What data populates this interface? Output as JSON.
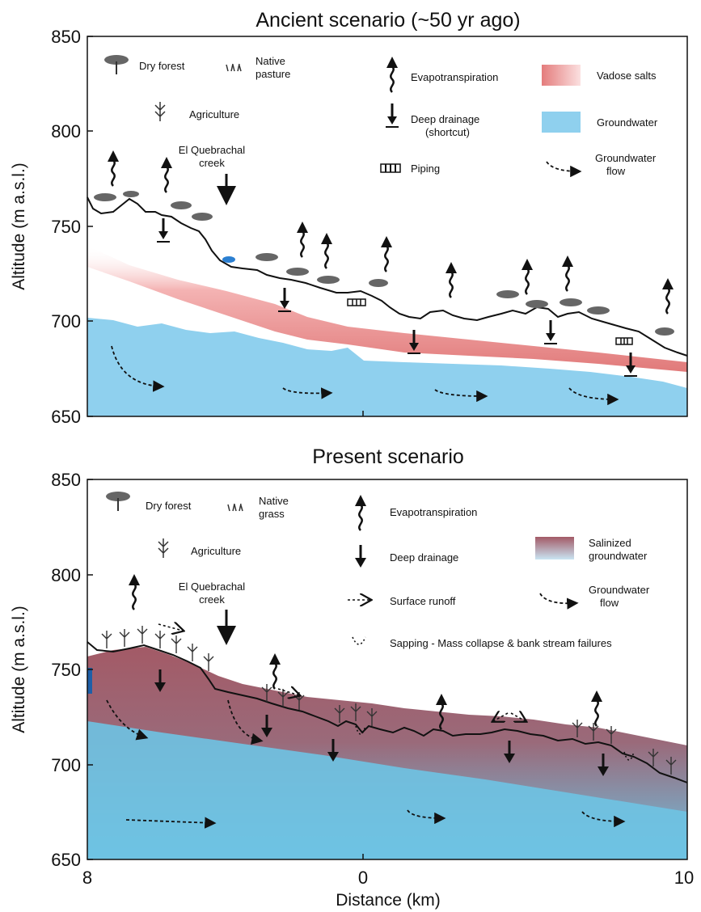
{
  "panels": [
    {
      "title": "Ancient scenario (~50 yr ago)",
      "ylabel": "Altitude (m a.s.l.)",
      "yticks": [
        "850",
        "800",
        "750",
        "700",
        "650"
      ],
      "creek_label": [
        "El Quebrachal",
        "creek"
      ],
      "legend": {
        "dry_forest": "Dry forest",
        "native": [
          "Native",
          "pasture"
        ],
        "agriculture": "Agriculture",
        "evapotranspiration": "Evapotranspiration",
        "deep_drainage": [
          "Deep drainage",
          "(shortcut)"
        ],
        "piping": "Piping",
        "salts": "Vadose salts",
        "groundwater": "Groundwater",
        "gw_flow": [
          "Groundwater",
          "flow"
        ]
      }
    },
    {
      "title": "Present scenario",
      "ylabel": "Altitude (m a.s.l.)",
      "yticks": [
        "850",
        "800",
        "750",
        "700",
        "650"
      ],
      "creek_label": [
        "El Quebrachal",
        "creek"
      ],
      "legend": {
        "dry_forest": "Dry forest",
        "native": [
          "Native",
          "grass"
        ],
        "agriculture": "Agriculture",
        "evapotranspiration": "Evapotranspiration",
        "deep_drainage": "Deep drainage",
        "runoff": "Surface runoff",
        "sapping": "Sapping - Mass collapse & bank stream failures",
        "salinized": [
          "Salinized",
          "groundwater"
        ],
        "gw_flow": [
          "Groundwater",
          "flow"
        ]
      }
    }
  ],
  "xaxis": {
    "label": "Distance (km)",
    "ticks": [
      "8",
      "0",
      "10"
    ]
  },
  "colors": {
    "groundwater": "#8fd0ee",
    "groundwater_present": "#6ec3e3",
    "vadose_salts": "#e88a8a",
    "salinized": "#a8606c",
    "line": "#111111"
  },
  "icons": [
    "tree-icon",
    "grass-icon",
    "crop-icon",
    "evapotranspiration-arrow-icon",
    "deep-drainage-arrow-icon",
    "piping-icon",
    "runoff-arrow-icon",
    "sapping-icon",
    "groundwater-flow-arrow-icon"
  ]
}
